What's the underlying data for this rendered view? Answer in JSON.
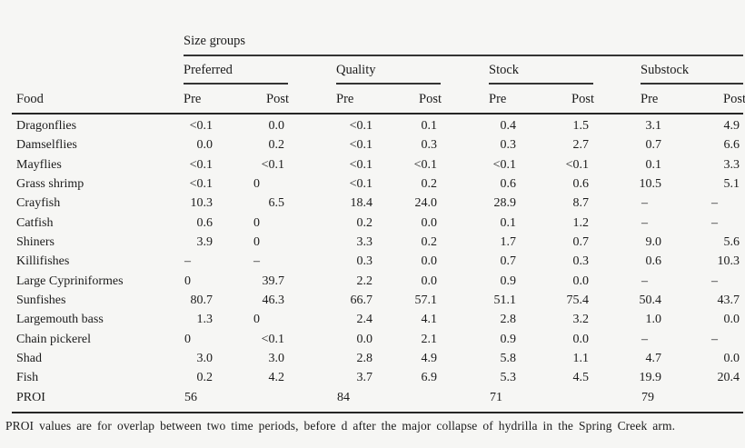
{
  "chart_data": {
    "type": "table",
    "title": "Size groups",
    "row_header": "Food",
    "column_groups": [
      "Preferred",
      "Quality",
      "Stock",
      "Substock"
    ],
    "sub_columns": [
      "Pre",
      "Post"
    ],
    "rows": [
      {
        "food": "Dragonflies",
        "values": [
          "<0.1",
          "0.0",
          "<0.1",
          "0.1",
          "0.4",
          "1.5",
          "3.1",
          "4.9"
        ]
      },
      {
        "food": "Damselflies",
        "values": [
          "0.0",
          "0.2",
          "<0.1",
          "0.3",
          "0.3",
          "2.7",
          "0.7",
          "6.6"
        ]
      },
      {
        "food": "Mayflies",
        "values": [
          "<0.1",
          "<0.1",
          "<0.1",
          "<0.1",
          "<0.1",
          "<0.1",
          "0.1",
          "3.3"
        ]
      },
      {
        "food": "Grass shrimp",
        "values": [
          "<0.1",
          "0",
          "<0.1",
          "0.2",
          "0.6",
          "0.6",
          "10.5",
          "5.1"
        ]
      },
      {
        "food": "Crayfish",
        "values": [
          "10.3",
          "6.5",
          "18.4",
          "24.0",
          "28.9",
          "8.7",
          "–",
          "–"
        ]
      },
      {
        "food": "Catfish",
        "values": [
          "0.6",
          "0",
          "0.2",
          "0.0",
          "0.1",
          "1.2",
          "–",
          "–"
        ]
      },
      {
        "food": "Shiners",
        "values": [
          "3.9",
          "0",
          "3.3",
          "0.2",
          "1.7",
          "0.7",
          "9.0",
          "5.6"
        ]
      },
      {
        "food": "Killifishes",
        "values": [
          "–",
          "–",
          "0.3",
          "0.0",
          "0.7",
          "0.3",
          "0.6",
          "10.3"
        ]
      },
      {
        "food": "Large Cypriniformes",
        "values": [
          "0",
          "39.7",
          "2.2",
          "0.0",
          "0.9",
          "0.0",
          "–",
          "–"
        ]
      },
      {
        "food": "Sunfishes",
        "values": [
          "80.7",
          "46.3",
          "66.7",
          "57.1",
          "51.1",
          "75.4",
          "50.4",
          "43.7"
        ]
      },
      {
        "food": "Largemouth bass",
        "values": [
          "1.3",
          "0",
          "2.4",
          "4.1",
          "2.8",
          "3.2",
          "1.0",
          "0.0"
        ]
      },
      {
        "food": "Chain pickerel",
        "values": [
          "0",
          "<0.1",
          "0.0",
          "2.1",
          "0.9",
          "0.0",
          "–",
          "–"
        ]
      },
      {
        "food": "Shad",
        "values": [
          "3.0",
          "3.0",
          "2.8",
          "4.9",
          "5.8",
          "1.1",
          "4.7",
          "0.0"
        ]
      },
      {
        "food": "Fish",
        "values": [
          "0.2",
          "4.2",
          "3.7",
          "6.9",
          "5.3",
          "4.5",
          "19.9",
          "20.4"
        ]
      },
      {
        "food": "PROI",
        "values": [
          "56",
          "",
          "84",
          "",
          "71",
          "",
          "79",
          ""
        ]
      }
    ],
    "footnote": "PROI values are for overlap between two time periods, before d after the major collapse of hydrilla in the Spring Creek arm."
  },
  "colors": {
    "background": "#f6f6f4",
    "text": "#1b1b1b",
    "rule": "#343434"
  }
}
